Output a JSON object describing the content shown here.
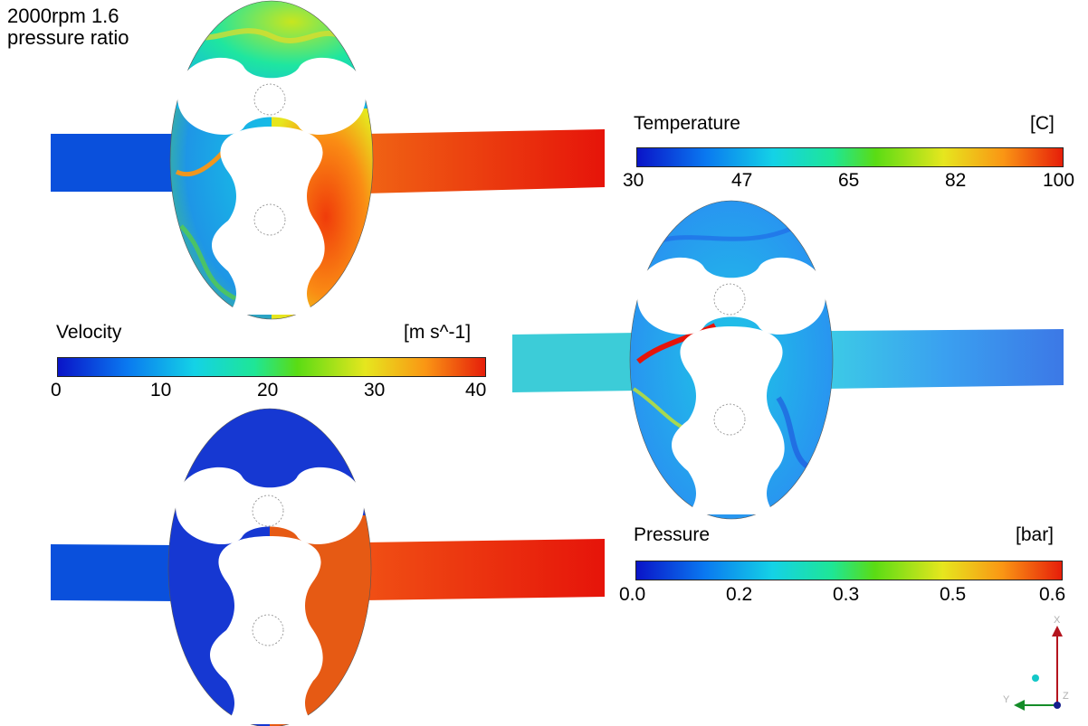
{
  "title": {
    "line1": "2000rpm 1.6",
    "line2": "pressure ratio"
  },
  "legends": {
    "temperature": {
      "label": "Temperature",
      "unit": "[C]",
      "ticks": [
        "30",
        "47",
        "65",
        "82",
        "100"
      ]
    },
    "velocity": {
      "label": "Velocity",
      "unit": "[m s^-1]",
      "ticks": [
        "0",
        "10",
        "20",
        "30",
        "40"
      ]
    },
    "pressure": {
      "label": "Pressure",
      "unit": "[bar]",
      "ticks": [
        "0.0",
        "0.2",
        "0.3",
        "0.5",
        "0.6"
      ]
    }
  },
  "colormap": [
    "#0a14c8",
    "#0a7cf0",
    "#14d2e6",
    "#1ee696",
    "#5adc14",
    "#e6e61e",
    "#fa9614",
    "#e61e0a"
  ],
  "axis_triad": {
    "x": "X",
    "y": "Y",
    "z": "Z"
  }
}
